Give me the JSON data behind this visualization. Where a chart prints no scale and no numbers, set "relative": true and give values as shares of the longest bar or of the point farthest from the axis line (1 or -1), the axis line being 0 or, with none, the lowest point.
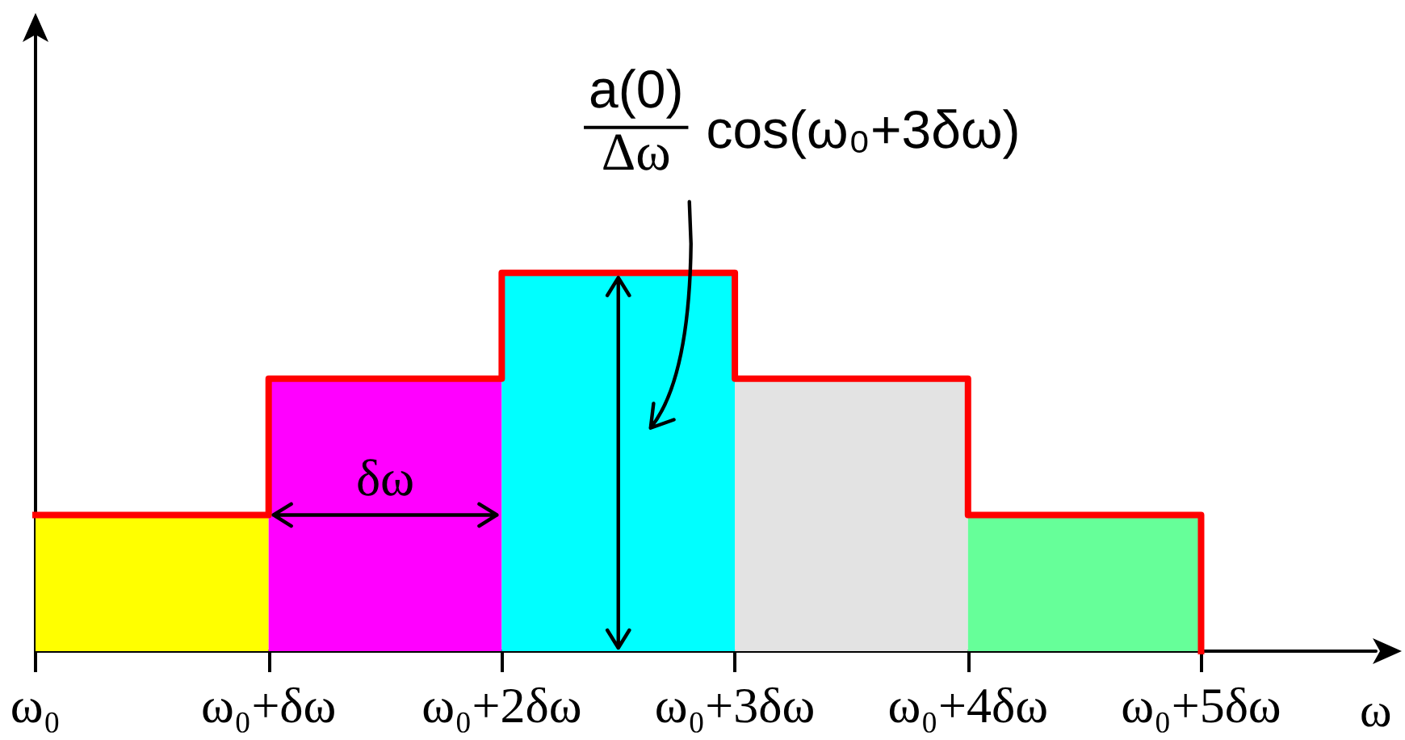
{
  "chart_data": {
    "type": "step",
    "relative": true,
    "xlabel": "ω",
    "categories": [
      "ω₀",
      "ω₀+δω",
      "ω₀+2δω",
      "ω₀+3δω",
      "ω₀+4δω",
      "ω₀+5δω"
    ],
    "series": [
      {
        "type": "area",
        "color": "#ffff00",
        "values": [
          0.36,
          0.36,
          null,
          null,
          null,
          null
        ]
      },
      {
        "type": "area",
        "color": "#ff00ff",
        "values": [
          null,
          0.72,
          0.72,
          null,
          null,
          null
        ]
      },
      {
        "type": "area",
        "color": "#00ffff",
        "values": [
          null,
          null,
          1,
          1,
          null,
          null
        ]
      },
      {
        "type": "area",
        "color": "#e3e3e3",
        "values": [
          null,
          null,
          null,
          0.72,
          0.72,
          null
        ]
      },
      {
        "type": "area",
        "color": "#66ff99",
        "values": [
          null,
          null,
          null,
          null,
          0.36,
          0.36
        ]
      },
      {
        "color": "#ff0000",
        "values": [
          0.36,
          0.72,
          1,
          0.72,
          0.36,
          0
        ]
      }
    ],
    "annotations": [
      "δω",
      "a(0)",
      "Δω",
      "cos(ω₀+3δω)"
    ]
  }
}
